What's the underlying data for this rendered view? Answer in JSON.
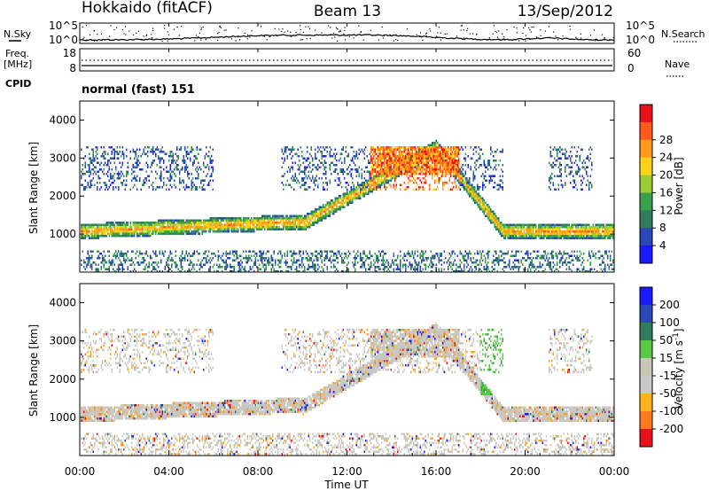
{
  "header": {
    "station": "Hokkaido (fitACF)",
    "beam": "Beam 13",
    "date": "13/Sep/2012"
  },
  "left_labels": {
    "nsky": "N.Sky",
    "freq_line1": "Freq.",
    "freq_line2": "[MHz]",
    "cpid": "CPID"
  },
  "right_labels": {
    "nsearch": "N.Search",
    "nave": "Nave"
  },
  "noise_panel": {
    "left_ticks": [
      "10^5",
      "10^0"
    ],
    "right_ticks": [
      "10^5",
      "10^0"
    ]
  },
  "freq_panel": {
    "left_ticks": [
      "18",
      "8"
    ],
    "right_ticks": [
      "60",
      "0"
    ]
  },
  "cpid_text": "normal (fast) 151",
  "colors": {
    "power_scale": [
      "#1a1aff",
      "#2a46b8",
      "#2e7d5e",
      "#3aa04a",
      "#9acd32",
      "#ffd21a",
      "#ff9a1a",
      "#ff5a1a",
      "#e8101a"
    ],
    "velocity_scale": [
      "#1a1aff",
      "#2a46b8",
      "#2e7d5e",
      "#5ac845",
      "#c8c8b8",
      "#c8c8c8",
      "#ffb21a",
      "#ff7a1a",
      "#e8101a"
    ]
  },
  "chart_data": [
    {
      "type": "heatmap",
      "name": "power",
      "ylabel": "Slant Range [km]",
      "yticks": [
        "1000",
        "2000",
        "3000",
        "4000"
      ],
      "colorbar_label": "Power [dB]",
      "colorbar_ticks": [
        "4",
        "8",
        "12",
        "16",
        "20",
        "24",
        "28"
      ],
      "ylim": [
        0,
        4500
      ],
      "xlim_hours": [
        0,
        24
      ]
    },
    {
      "type": "heatmap",
      "name": "velocity",
      "ylabel": "Slant Range [km]",
      "yticks": [
        "1000",
        "2000",
        "3000",
        "4000"
      ],
      "colorbar_label": "Velocity [m s^-1]",
      "colorbar_ticks": [
        "200",
        "100",
        "50",
        "15",
        "-15",
        "-50",
        "-100",
        "-200"
      ],
      "ylim": [
        0,
        4500
      ],
      "xlim_hours": [
        0,
        24
      ]
    }
  ],
  "x_axis": {
    "label": "Time UT",
    "ticks": [
      "00:00",
      "04:00",
      "08:00",
      "12:00",
      "16:00",
      "20:00",
      "00:00"
    ]
  }
}
